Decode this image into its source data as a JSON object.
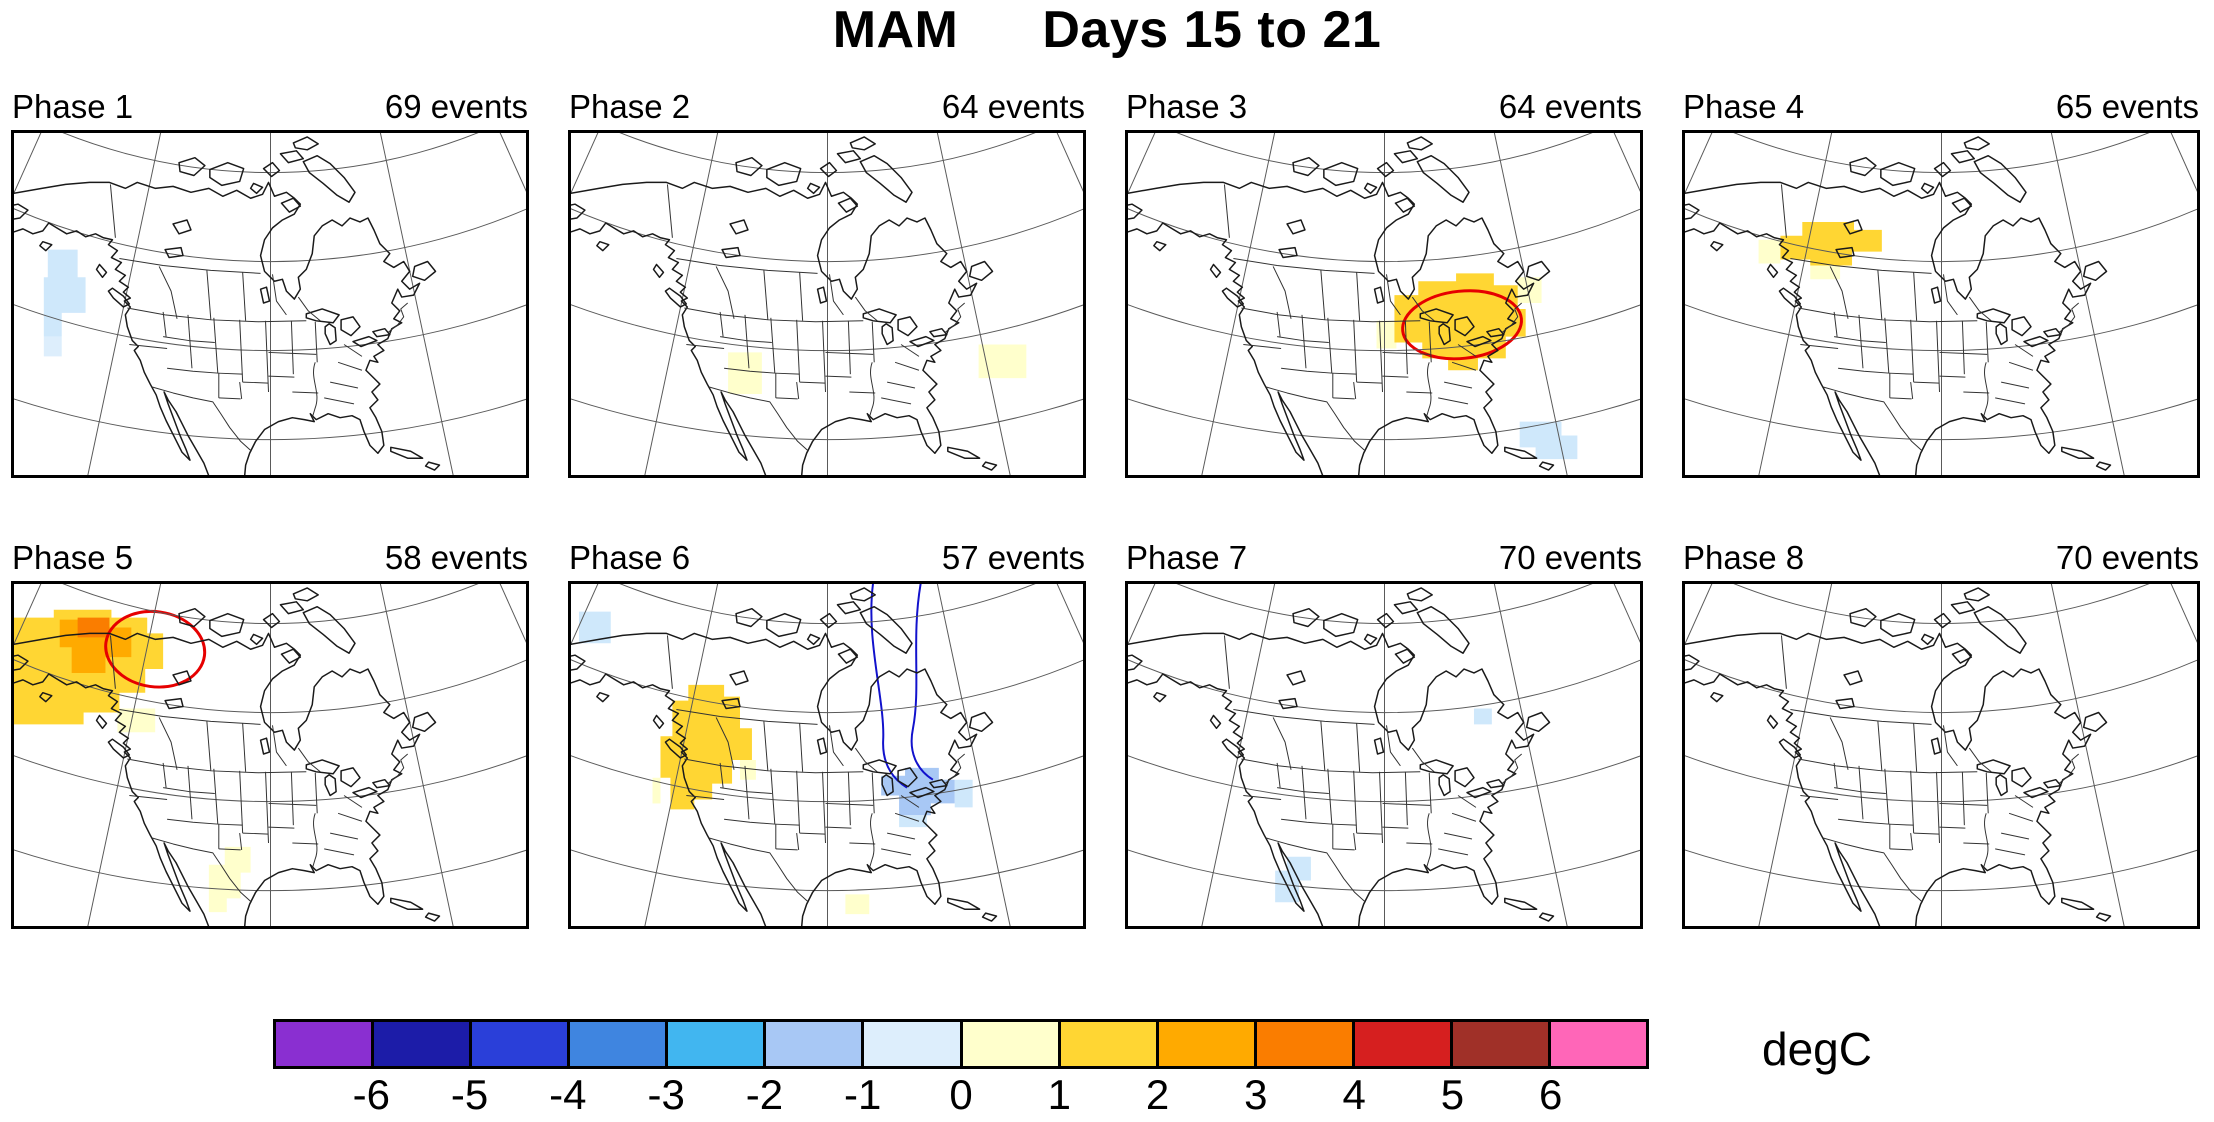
{
  "title": {
    "season": "MAM",
    "days": "Days 15 to 21"
  },
  "panels": [
    {
      "label": "Phase 1",
      "events": "69 events"
    },
    {
      "label": "Phase 2",
      "events": "64 events"
    },
    {
      "label": "Phase 3",
      "events": "64 events"
    },
    {
      "label": "Phase 4",
      "events": "65 events"
    },
    {
      "label": "Phase 5",
      "events": "58 events"
    },
    {
      "label": "Phase 6",
      "events": "57 events"
    },
    {
      "label": "Phase 7",
      "events": "70 events"
    },
    {
      "label": "Phase 8",
      "events": "70 events"
    }
  ],
  "colorbar": {
    "unit_label": "degC",
    "tick_labels": [
      "-6",
      "-5",
      "-4",
      "-3",
      "-2",
      "-1",
      "0",
      "1",
      "2",
      "3",
      "4",
      "5",
      "6"
    ],
    "colors": [
      "#8a2fd1",
      "#1c1ca8",
      "#2a3fd9",
      "#3f85e0",
      "#41b6f0",
      "#a8c8f5",
      "#ddeefc",
      "#ffffcc",
      "#ffd633",
      "#ffaa00",
      "#fa7d00",
      "#d61f1f",
      "#a03028",
      "#ff66b8"
    ]
  },
  "chart_data": {
    "type": "heatmap",
    "title": "MAM   Days 15 to 21",
    "layout": "2 rows x 4 columns of North America maps",
    "unit": "degC",
    "colorbar_ticks": [
      -6,
      -5,
      -4,
      -3,
      -2,
      -1,
      0,
      1,
      2,
      3,
      4,
      5,
      6
    ],
    "colorbar_colors": [
      "#8a2fd1",
      "#1c1ca8",
      "#2a3fd9",
      "#3f85e0",
      "#41b6f0",
      "#a8c8f5",
      "#ddeefc",
      "#ffffcc",
      "#ffd633",
      "#ffaa00",
      "#fa7d00",
      "#d61f1f",
      "#a03028",
      "#ff66b8"
    ],
    "panels": [
      {
        "phase": 1,
        "events": 69,
        "anomalies": [
          {
            "region": "Pacific coast of British Columbia / SE Alaska",
            "value_degC": -0.5
          }
        ]
      },
      {
        "phase": 2,
        "events": 64,
        "anomalies": [
          {
            "region": "southern Rockies (Colorado / New Mexico)",
            "value_degC": 0.5
          },
          {
            "region": "western Atlantic off Nova Scotia",
            "value_degC": 0.5
          }
        ]
      },
      {
        "phase": 3,
        "events": 64,
        "anomalies": [
          {
            "region": "Great Lakes and upper Midwest",
            "value_degC": 1.5,
            "annotation": "red ellipse highlight"
          },
          {
            "region": "Atlantic off southeast US",
            "value_degC": -0.5
          }
        ]
      },
      {
        "phase": 4,
        "events": 65,
        "anomalies": [
          {
            "region": "western Canadian Arctic (Victoria Island area)",
            "value_degC": 1.5
          }
        ]
      },
      {
        "phase": 5,
        "events": 58,
        "anomalies": [
          {
            "region": "Alaska / Yukon / Northwest Territories",
            "value_degC": 2.5,
            "annotation": "red ellipse highlight"
          },
          {
            "region": "Texas / New Mexico",
            "value_degC": 0.5
          }
        ]
      },
      {
        "phase": 6,
        "events": 57,
        "anomalies": [
          {
            "region": "British Columbia / northern Rockies",
            "value_degC": 1.5
          },
          {
            "region": "lower Great Lakes / Northeast US",
            "value_degC": -1.5,
            "annotation": "blue contour lines"
          },
          {
            "region": "south-central US",
            "value_degC": 0.5
          }
        ]
      },
      {
        "phase": 7,
        "events": 70,
        "anomalies": [
          {
            "region": "northwest Mexico coast",
            "value_degC": -0.5
          },
          {
            "region": "northern Quebec",
            "value_degC": -0.5
          }
        ]
      },
      {
        "phase": 8,
        "events": 70,
        "anomalies": []
      }
    ]
  }
}
